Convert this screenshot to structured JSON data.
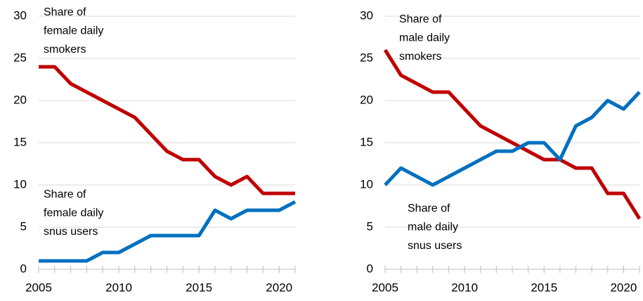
{
  "chart_data": [
    {
      "type": "line",
      "x": [
        2005,
        2006,
        2007,
        2008,
        2009,
        2010,
        2011,
        2012,
        2013,
        2014,
        2015,
        2016,
        2017,
        2018,
        2019,
        2020,
        2021
      ],
      "xlim": [
        2005,
        2021
      ],
      "xticks": [
        2005,
        2010,
        2015,
        2020
      ],
      "ylim": [
        0,
        30
      ],
      "yticks": [
        0,
        5,
        10,
        15,
        20,
        25,
        30
      ],
      "grid": true,
      "series": [
        {
          "name": "Share of female daily smokers",
          "color": "#c00000",
          "values": [
            24,
            24,
            22,
            21,
            20,
            19,
            18,
            16,
            14,
            13,
            13,
            11,
            10,
            11,
            9,
            9,
            9
          ]
        },
        {
          "name": "Share of female daily snus users",
          "color": "#0070c0",
          "values": [
            1,
            1,
            1,
            1,
            2,
            2,
            3,
            4,
            4,
            4,
            4,
            7,
            6,
            7,
            7,
            7,
            8
          ]
        }
      ],
      "annotations": [
        {
          "lines": [
            "Share of",
            "female daily",
            "smokers"
          ]
        },
        {
          "lines": [
            "Share of",
            "female daily",
            "snus users"
          ]
        }
      ]
    },
    {
      "type": "line",
      "x": [
        2005,
        2006,
        2007,
        2008,
        2009,
        2010,
        2011,
        2012,
        2013,
        2014,
        2015,
        2016,
        2017,
        2018,
        2019,
        2020,
        2021
      ],
      "xlim": [
        2005,
        2021
      ],
      "xticks": [
        2005,
        2010,
        2015,
        2020
      ],
      "ylim": [
        0,
        30
      ],
      "yticks": [
        0,
        5,
        10,
        15,
        20,
        25,
        30
      ],
      "grid": true,
      "series": [
        {
          "name": "Share of male daily smokers",
          "color": "#c00000",
          "values": [
            26,
            23,
            22,
            21,
            21,
            19,
            17,
            16,
            15,
            14,
            13,
            13,
            12,
            12,
            9,
            9,
            6
          ]
        },
        {
          "name": "Share of male daily snus users",
          "color": "#0070c0",
          "values": [
            10,
            12,
            11,
            10,
            11,
            12,
            13,
            14,
            14,
            15,
            15,
            13,
            17,
            18,
            20,
            19,
            21
          ]
        }
      ],
      "annotations": [
        {
          "lines": [
            "Share of",
            "male daily",
            "smokers"
          ]
        },
        {
          "lines": [
            "Share of",
            "male daily",
            "snus users"
          ]
        }
      ]
    }
  ]
}
